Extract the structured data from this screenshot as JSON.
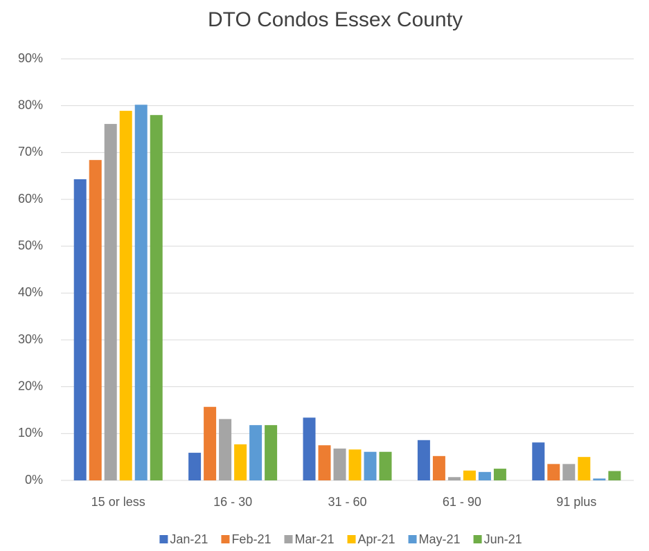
{
  "chart_data": {
    "type": "bar",
    "title": "DTO Condos Essex County",
    "categories": [
      "15 or less",
      "16 - 30",
      "31 - 60",
      "61 - 90",
      "91 plus"
    ],
    "series": [
      {
        "name": "Jan-21",
        "color": "#4472c4",
        "values": [
          64.3,
          5.9,
          13.4,
          8.6,
          8.1
        ]
      },
      {
        "name": "Feb-21",
        "color": "#ed7d31",
        "values": [
          68.4,
          15.7,
          7.5,
          5.2,
          3.5
        ]
      },
      {
        "name": "Mar-21",
        "color": "#a5a5a5",
        "values": [
          76.1,
          13.1,
          6.8,
          0.7,
          3.5
        ]
      },
      {
        "name": "Apr-21",
        "color": "#ffc000",
        "values": [
          78.9,
          7.7,
          6.6,
          2.1,
          5.0
        ]
      },
      {
        "name": "May-21",
        "color": "#5b9bd5",
        "values": [
          80.2,
          11.8,
          6.1,
          1.8,
          0.4
        ]
      },
      {
        "name": "Jun-21",
        "color": "#70ad47",
        "values": [
          78.0,
          11.8,
          6.1,
          2.5,
          2.0
        ]
      }
    ],
    "ylim": [
      0,
      90
    ],
    "yticks": [
      {
        "value": 0,
        "label": "0%"
      },
      {
        "value": 10,
        "label": "10%"
      },
      {
        "value": 20,
        "label": "20%"
      },
      {
        "value": 30,
        "label": "30%"
      },
      {
        "value": 40,
        "label": "40%"
      },
      {
        "value": 50,
        "label": "50%"
      },
      {
        "value": 60,
        "label": "60%"
      },
      {
        "value": 70,
        "label": "70%"
      },
      {
        "value": 80,
        "label": "80%"
      },
      {
        "value": 90,
        "label": "90%"
      }
    ],
    "grid": true,
    "legend": "bottom"
  }
}
